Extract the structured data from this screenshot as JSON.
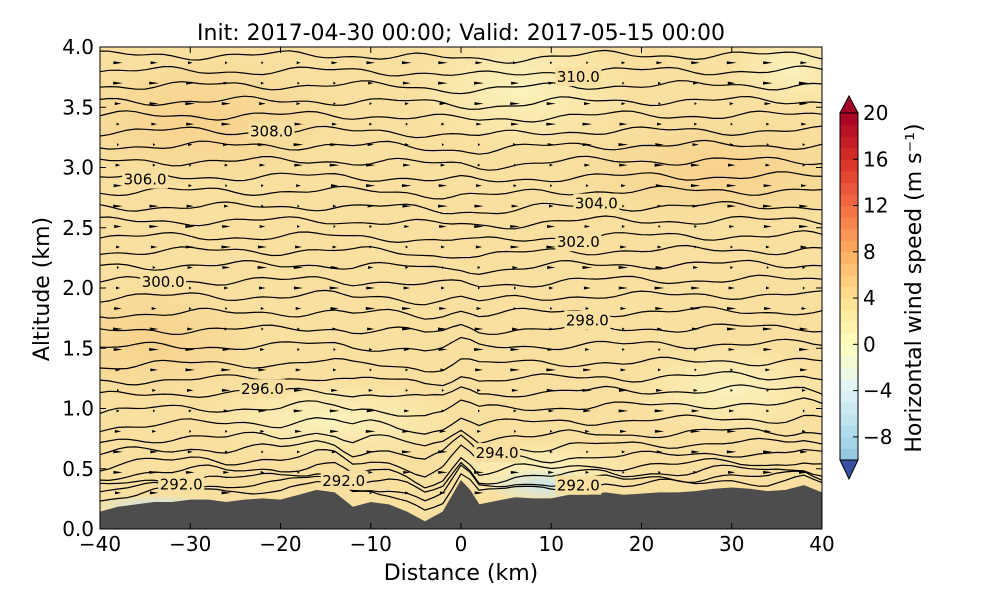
{
  "chart_data": {
    "type": "cross-section contour",
    "title": "Init: 2017-04-30 00:00; Valid: 2017-05-15 00:00",
    "xlabel": "Distance (km)",
    "ylabel": "Altitude (km)",
    "xlim": [
      -40,
      40
    ],
    "ylim": [
      0,
      4
    ],
    "x_ticks": [
      -40,
      -30,
      -20,
      -10,
      0,
      10,
      20,
      30,
      40
    ],
    "x_tick_labels": [
      "−40",
      "−30",
      "−20",
      "−10",
      "0",
      "10",
      "20",
      "30",
      "40"
    ],
    "y_ticks": [
      0,
      0.5,
      1,
      1.5,
      2,
      2.5,
      3,
      3.5,
      4
    ],
    "y_tick_labels": [
      "0.0",
      "0.5",
      "1.0",
      "1.5",
      "2.0",
      "2.5",
      "3.0",
      "3.5",
      "4.0"
    ],
    "colorbar": {
      "label": "Horizontal wind speed (m s⁻¹)",
      "min": -10,
      "max": 20,
      "step": 2,
      "extend": "both",
      "colormap": "RdYlBu_r",
      "ticks": [
        -8,
        -4,
        0,
        4,
        8,
        12,
        16,
        20
      ],
      "tick_labels": [
        "−8",
        "−4",
        "0",
        "4",
        "8",
        "12",
        "16",
        "20"
      ]
    },
    "terrain": {
      "x": [
        -40,
        -38,
        -36,
        -34,
        -32,
        -30,
        -28,
        -26,
        -24,
        -22,
        -20,
        -18,
        -16,
        -14,
        -12,
        -10,
        -8,
        -6,
        -4,
        -2,
        0,
        1,
        2,
        4,
        6,
        8,
        10,
        12,
        14,
        16,
        18,
        20,
        22,
        24,
        26,
        28,
        30,
        32,
        34,
        36,
        38,
        40
      ],
      "y": [
        0.14,
        0.18,
        0.2,
        0.22,
        0.22,
        0.24,
        0.24,
        0.22,
        0.24,
        0.25,
        0.24,
        0.28,
        0.32,
        0.3,
        0.18,
        0.22,
        0.2,
        0.14,
        0.06,
        0.14,
        0.4,
        0.32,
        0.2,
        0.23,
        0.26,
        0.25,
        0.25,
        0.28,
        0.28,
        0.3,
        0.28,
        0.29,
        0.3,
        0.3,
        0.31,
        0.33,
        0.34,
        0.33,
        0.31,
        0.32,
        0.36,
        0.3
      ],
      "color": "#4d4d4d"
    },
    "contour_labels": [
      {
        "text": "310.0",
        "x": 13,
        "y": 3.75
      },
      {
        "text": "308.0",
        "x": -21,
        "y": 3.3
      },
      {
        "text": "306.0",
        "x": -35,
        "y": 2.9
      },
      {
        "text": "304.0",
        "x": 15,
        "y": 2.7
      },
      {
        "text": "302.0",
        "x": 13,
        "y": 2.38
      },
      {
        "text": "300.0",
        "x": -33,
        "y": 2.05
      },
      {
        "text": "298.0",
        "x": 14,
        "y": 1.73
      },
      {
        "text": "296.0",
        "x": -22,
        "y": 1.16
      },
      {
        "text": "294.0",
        "x": 4,
        "y": 0.63
      },
      {
        "text": "292.0",
        "x": -31,
        "y": 0.37
      },
      {
        "text": "292.0",
        "x": -13,
        "y": 0.4
      },
      {
        "text": "292.0",
        "x": 13,
        "y": 0.36
      }
    ],
    "contour_base_levels": [
      0.25,
      0.3,
      0.36,
      0.43,
      0.52,
      0.62,
      0.72,
      0.84,
      0.97,
      1.1,
      1.22,
      1.35,
      1.5,
      1.64,
      1.78,
      1.92,
      2.05,
      2.18,
      2.3,
      2.42,
      2.55,
      2.67,
      2.8,
      2.92,
      3.05,
      3.18,
      3.3,
      3.43,
      3.55,
      3.68,
      3.8,
      3.93
    ]
  }
}
